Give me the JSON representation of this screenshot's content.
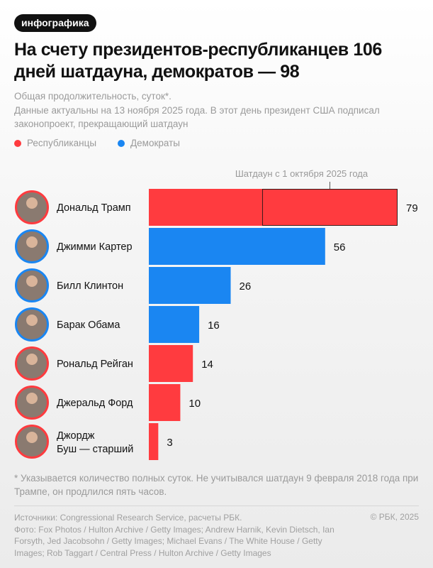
{
  "badge": "инфографика",
  "title": "На счету президентов-республиканцев 106 дней шатдауна, демократов — 98",
  "subtitle_lines": [
    "Общая продолжительность, суток*.",
    "Данные актуальны на 13 ноября 2025 года. В этот день президент США подписал законопроект, прекращающий шатдаун"
  ],
  "colors": {
    "republican": "#ff3b3f",
    "democrat": "#1a86f2"
  },
  "chart_data": {
    "type": "bar",
    "orientation": "horizontal",
    "legend": [
      {
        "name": "Республиканцы",
        "color": "#ff3b3f"
      },
      {
        "name": "Демократы",
        "color": "#1a86f2"
      }
    ],
    "legend_placement": "top-left",
    "categories": [
      "Дональд Трамп",
      "Джимми Картер",
      "Билл Клинтон",
      "Барак Обама",
      "Рональд Рейган",
      "Джеральд Форд",
      "Джордж Буш — старший"
    ],
    "values": [
      79,
      56,
      26,
      16,
      14,
      10,
      3
    ],
    "party": [
      "Республиканцы",
      "Демократы",
      "Демократы",
      "Демократы",
      "Республиканцы",
      "Республиканцы",
      "Республиканцы"
    ],
    "annotation": {
      "label": "Шатдаун с 1 октября 2025 года",
      "category": "Дональд Трамп",
      "value": 43
    },
    "grid": false,
    "xlim": [
      0,
      79
    ]
  },
  "footnote": "* Указывается количество полных суток. Не учитывался шатдаун 9 февраля 2018 года при Трампе, он продлился пять часов.",
  "sources": "Источники: Congressional Research Service, расчеты РБК.",
  "photo_credits": "Фото: Fox Photos / Hulton Archive / Getty Images; Andrew Harnik, Kevin Dietsch, Ian Forsyth, Jed Jacobsohn / Getty Images; Michael Evans / The White House / Getty Images; Rob Taggart / Central Press / Hulton Archive / Getty Images",
  "copyright": "© РБК, 2025"
}
